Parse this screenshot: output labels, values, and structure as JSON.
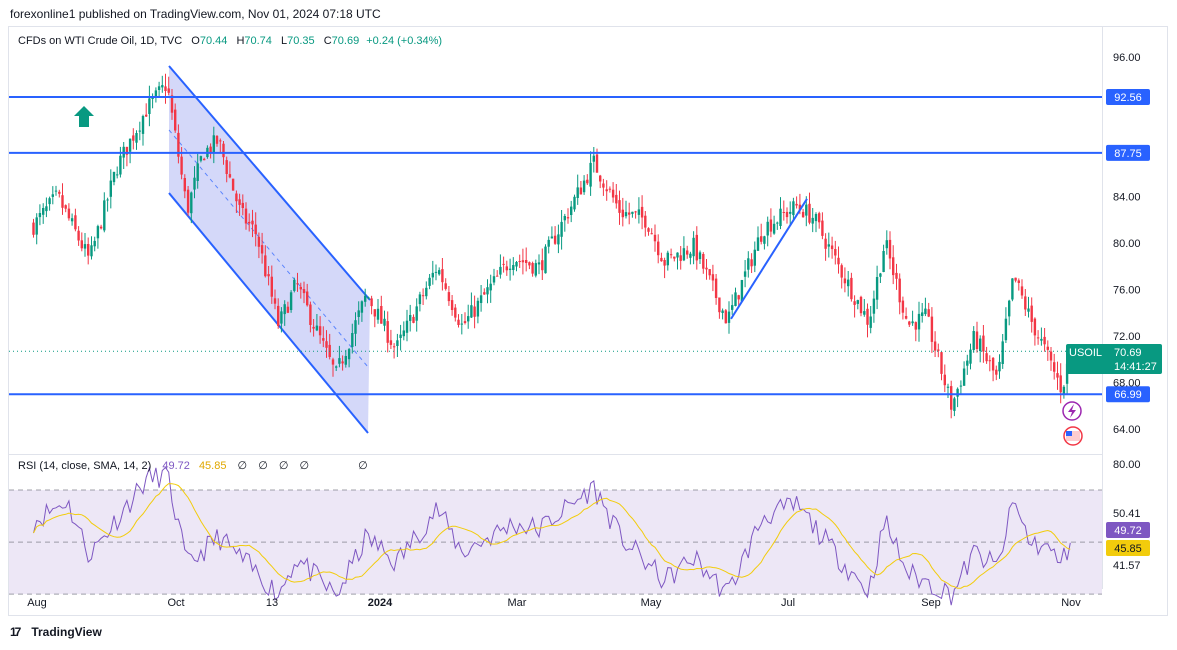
{
  "header": {
    "publish_line": "forexonline1 published on TradingView.com, Nov 01, 2024 07:18 UTC"
  },
  "legend": {
    "symbol_line": "CFDs on WTI Crude Oil, 1D, TVC",
    "o_label": "O",
    "o_value": "70.44",
    "h_label": "H",
    "h_value": "70.74",
    "l_label": "L",
    "l_value": "70.35",
    "c_label": "C",
    "c_value": "70.69",
    "change": "+0.24 (+0.34%)"
  },
  "rsi_legend": {
    "label": "RSI (14, close, SMA, 14, 2)",
    "rsi_value": "49.72",
    "sma_value": "45.85",
    "na1": "∅",
    "na2": "∅",
    "na3": "∅",
    "na4": "∅",
    "na5": "∅"
  },
  "footer": {
    "brand": "TradingView"
  },
  "colors": {
    "up": "#089981",
    "down": "#f23645",
    "line": "#2962ff",
    "channel_fill": "#c5cbf7",
    "rsi": "#7e57c2",
    "rsi_sma": "#f2cc0c",
    "rsi_band": "#ede7f6",
    "last_price_bg": "#089981"
  },
  "chart_data": {
    "type": "candlestick",
    "symbol": "USOIL",
    "timeframe": "1D",
    "x_ticks": [
      "Aug",
      "Oct",
      "13",
      "2024",
      "Mar",
      "May",
      "Jul",
      "Sep",
      "Nov"
    ],
    "y_ticks": [
      "96.00",
      "84.00",
      "80.00",
      "76.00",
      "72.00",
      "68.00",
      "64.00"
    ],
    "ylim": [
      61.7,
      98.0
    ],
    "horizontal_levels": [
      {
        "value": 92.56,
        "label": "92.56"
      },
      {
        "value": 87.75,
        "label": "87.75"
      },
      {
        "value": 66.99,
        "label": "66.99"
      }
    ],
    "last_price": {
      "symbol": "USOIL",
      "value": "70.69",
      "countdown": "14:41:27"
    },
    "price_path": [
      {
        "t": "2023-07-31",
        "p": 81.5
      },
      {
        "t": "2023-08-10",
        "p": 84.0
      },
      {
        "t": "2023-08-24",
        "p": 78.5
      },
      {
        "t": "2023-09-05",
        "p": 86.5
      },
      {
        "t": "2023-09-18",
        "p": 91.5
      },
      {
        "t": "2023-09-27",
        "p": 93.7
      },
      {
        "t": "2023-10-06",
        "p": 82.8
      },
      {
        "t": "2023-10-13",
        "p": 87.7
      },
      {
        "t": "2023-10-20",
        "p": 88.8
      },
      {
        "t": "2023-10-30",
        "p": 82.5
      },
      {
        "t": "2023-11-06",
        "p": 80.8
      },
      {
        "t": "2023-11-16",
        "p": 72.9
      },
      {
        "t": "2023-11-24",
        "p": 76.5
      },
      {
        "t": "2023-12-12",
        "p": 68.6
      },
      {
        "t": "2023-12-26",
        "p": 75.6
      },
      {
        "t": "2024-01-08",
        "p": 70.8
      },
      {
        "t": "2024-01-26",
        "p": 78.0
      },
      {
        "t": "2024-02-06",
        "p": 72.8
      },
      {
        "t": "2024-02-28",
        "p": 78.8
      },
      {
        "t": "2024-03-11",
        "p": 77.9
      },
      {
        "t": "2024-04-05",
        "p": 86.9
      },
      {
        "t": "2024-04-17",
        "p": 82.7
      },
      {
        "t": "2024-04-29",
        "p": 82.0
      },
      {
        "t": "2024-05-07",
        "p": 78.4
      },
      {
        "t": "2024-05-20",
        "p": 79.7
      },
      {
        "t": "2024-06-04",
        "p": 73.3
      },
      {
        "t": "2024-06-20",
        "p": 81.3
      },
      {
        "t": "2024-07-05",
        "p": 83.2
      },
      {
        "t": "2024-07-12",
        "p": 82.2
      },
      {
        "t": "2024-07-24",
        "p": 77.6
      },
      {
        "t": "2024-08-05",
        "p": 73.2
      },
      {
        "t": "2024-08-12",
        "p": 80.1
      },
      {
        "t": "2024-08-22",
        "p": 73.0
      },
      {
        "t": "2024-08-30",
        "p": 73.6
      },
      {
        "t": "2024-09-10",
        "p": 65.9
      },
      {
        "t": "2024-09-20",
        "p": 71.9
      },
      {
        "t": "2024-09-30",
        "p": 68.2
      },
      {
        "t": "2024-10-07",
        "p": 77.1
      },
      {
        "t": "2024-10-14",
        "p": 73.6
      },
      {
        "t": "2024-10-21",
        "p": 70.6
      },
      {
        "t": "2024-10-28",
        "p": 67.4
      },
      {
        "t": "2024-11-01",
        "p": 70.69
      }
    ],
    "rsi": {
      "panel_ticks": [
        "80.00",
        "50.41",
        "41.57"
      ],
      "rsi_value": "49.72",
      "sma_value": "45.85",
      "path": [
        {
          "t": "2023-07-31",
          "v": 58
        },
        {
          "t": "2023-08-14",
          "v": 66
        },
        {
          "t": "2023-08-24",
          "v": 45
        },
        {
          "t": "2023-09-18",
          "v": 74
        },
        {
          "t": "2023-09-27",
          "v": 76
        },
        {
          "t": "2023-10-06",
          "v": 41
        },
        {
          "t": "2023-10-20",
          "v": 52
        },
        {
          "t": "2023-11-16",
          "v": 30
        },
        {
          "t": "2023-11-24",
          "v": 44
        },
        {
          "t": "2023-12-12",
          "v": 29
        },
        {
          "t": "2023-12-26",
          "v": 52
        },
        {
          "t": "2024-01-08",
          "v": 42
        },
        {
          "t": "2024-01-26",
          "v": 63
        },
        {
          "t": "2024-02-06",
          "v": 46
        },
        {
          "t": "2024-02-28",
          "v": 57
        },
        {
          "t": "2024-03-11",
          "v": 55
        },
        {
          "t": "2024-04-05",
          "v": 71
        },
        {
          "t": "2024-04-17",
          "v": 52
        },
        {
          "t": "2024-05-07",
          "v": 35
        },
        {
          "t": "2024-05-20",
          "v": 44
        },
        {
          "t": "2024-06-04",
          "v": 30
        },
        {
          "t": "2024-06-20",
          "v": 60
        },
        {
          "t": "2024-07-05",
          "v": 64
        },
        {
          "t": "2024-07-24",
          "v": 43
        },
        {
          "t": "2024-08-05",
          "v": 31
        },
        {
          "t": "2024-08-12",
          "v": 58
        },
        {
          "t": "2024-08-22",
          "v": 38
        },
        {
          "t": "2024-09-10",
          "v": 30
        },
        {
          "t": "2024-09-20",
          "v": 46
        },
        {
          "t": "2024-09-30",
          "v": 40
        },
        {
          "t": "2024-10-07",
          "v": 66
        },
        {
          "t": "2024-10-14",
          "v": 50
        },
        {
          "t": "2024-10-21",
          "v": 48
        },
        {
          "t": "2024-10-28",
          "v": 42
        },
        {
          "t": "2024-11-01",
          "v": 49.72
        }
      ]
    }
  }
}
